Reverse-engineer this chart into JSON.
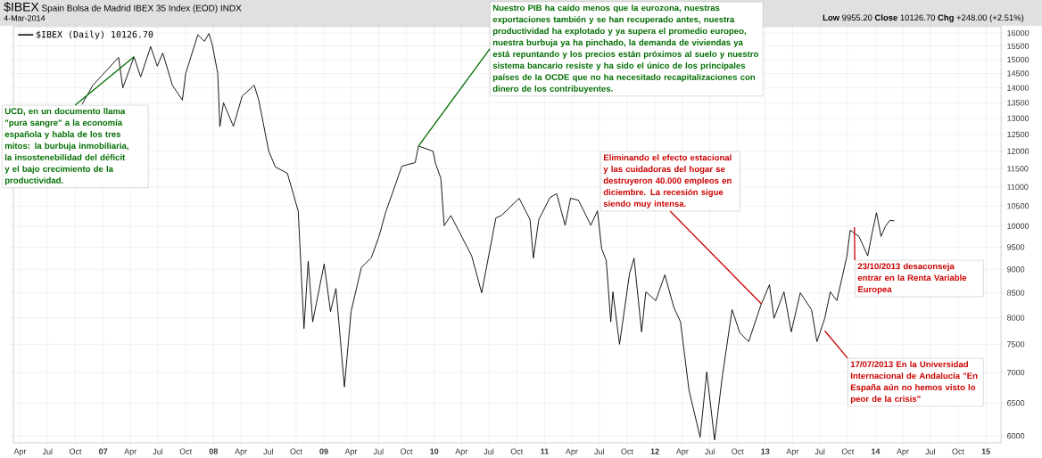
{
  "chart_data": {
    "type": "line",
    "title": "$IBEX",
    "subtitle": "Spain Bolsa de Madrid IBEX 35 Index (EOD) INDX",
    "x": [
      "2006-10-23",
      "2006-11-28",
      "2007-02-21",
      "2007-03-07",
      "2007-04-13",
      "2007-05-05",
      "2007-06-07",
      "2007-06-29",
      "2007-07-17",
      "2007-08-18",
      "2007-09-20",
      "2007-10-01",
      "2007-11-10",
      "2007-12-02",
      "2007-12-17",
      "2007-12-28",
      "2008-01-15",
      "2008-01-22",
      "2008-02-03",
      "2008-03-07",
      "2008-04-05",
      "2008-05-15",
      "2008-05-30",
      "2008-07-02",
      "2008-07-24",
      "2008-09-02",
      "2008-10-08",
      "2008-10-27",
      "2008-11-10",
      "2008-11-25",
      "2009-01-02",
      "2009-01-23",
      "2009-02-10",
      "2009-03-10",
      "2009-04-01",
      "2009-05-05",
      "2009-06-07",
      "2009-07-02",
      "2009-07-24",
      "2009-09-16",
      "2009-10-30",
      "2009-11-10",
      "2009-12-28",
      "2010-01-05",
      "2010-01-23",
      "2010-02-03",
      "2010-02-25",
      "2010-05-05",
      "2010-06-07",
      "2010-07-24",
      "2010-08-11",
      "2010-10-09",
      "2010-11-14",
      "2010-11-25",
      "2010-12-13",
      "2011-01-19",
      "2011-02-10",
      "2011-03-10",
      "2011-03-28",
      "2011-04-23",
      "2011-06-03",
      "2011-06-25",
      "2011-07-09",
      "2011-07-24",
      "2011-08-08",
      "2011-08-15",
      "2011-09-06",
      "2011-10-09",
      "2011-10-24",
      "2011-11-18",
      "2011-12-02",
      "2012-01-04",
      "2012-02-03",
      "2012-03-04",
      "2012-03-26",
      "2012-04-23",
      "2012-05-30",
      "2012-06-21",
      "2012-07-17",
      "2012-08-11",
      "2012-09-13",
      "2012-10-09",
      "2012-11-07",
      "2012-12-17",
      "2013-01-15",
      "2013-01-30",
      "2013-03-04",
      "2013-03-28",
      "2013-04-27",
      "2013-06-03",
      "2013-06-21",
      "2013-07-17",
      "2013-08-04",
      "2013-08-26",
      "2013-09-28",
      "2013-10-09",
      "2013-11-07",
      "2013-12-06",
      "2013-12-21",
      "2014-01-04",
      "2014-01-19",
      "2014-02-03",
      "2014-02-17",
      "2014-03-04"
    ],
    "series": [
      {
        "name": "$IBEX (Daily) 10126.70",
        "color": "#000000",
        "values": [
          13450,
          14090,
          15080,
          14000,
          15100,
          14380,
          15480,
          14760,
          15240,
          14090,
          13590,
          14500,
          15930,
          15680,
          15980,
          15550,
          14500,
          12740,
          13500,
          12750,
          13720,
          14090,
          13590,
          12010,
          11550,
          11370,
          10370,
          7790,
          9180,
          7920,
          9120,
          8120,
          8590,
          6760,
          8120,
          9040,
          9260,
          9740,
          10330,
          11570,
          11670,
          12150,
          12000,
          11660,
          11230,
          10010,
          10260,
          9300,
          8500,
          10200,
          10260,
          10700,
          10160,
          9250,
          10160,
          10720,
          10820,
          10020,
          10700,
          10650,
          10020,
          10380,
          9460,
          9200,
          7920,
          8520,
          7500,
          8900,
          9250,
          7730,
          8520,
          8340,
          8880,
          8200,
          7920,
          6710,
          5980,
          7010,
          5940,
          6910,
          8160,
          7710,
          7550,
          8240,
          8670,
          7990,
          8520,
          7730,
          8500,
          8160,
          7550,
          7990,
          8520,
          8340,
          9290,
          9900,
          9750,
          9300,
          9850,
          10330,
          9750,
          10000,
          10140,
          10126.7
        ]
      }
    ],
    "xlim": [
      "2006-03-10",
      "2015-02-20"
    ],
    "xticks": [
      {
        "value": "2006-04-01",
        "label": "Apr"
      },
      {
        "value": "2006-07-01",
        "label": "Jul"
      },
      {
        "value": "2006-10-01",
        "label": "Oct"
      },
      {
        "value": "2007-01-01",
        "label": "07"
      },
      {
        "value": "2007-04-01",
        "label": "Apr"
      },
      {
        "value": "2007-07-01",
        "label": "Jul"
      },
      {
        "value": "2007-10-01",
        "label": "Oct"
      },
      {
        "value": "2008-01-01",
        "label": "08"
      },
      {
        "value": "2008-04-01",
        "label": "Apr"
      },
      {
        "value": "2008-07-01",
        "label": "Jul"
      },
      {
        "value": "2008-10-01",
        "label": "Oct"
      },
      {
        "value": "2009-01-01",
        "label": "09"
      },
      {
        "value": "2009-04-01",
        "label": "Apr"
      },
      {
        "value": "2009-07-01",
        "label": "Jul"
      },
      {
        "value": "2009-10-01",
        "label": "Oct"
      },
      {
        "value": "2010-01-01",
        "label": "10"
      },
      {
        "value": "2010-04-01",
        "label": "Apr"
      },
      {
        "value": "2010-07-01",
        "label": "Jul"
      },
      {
        "value": "2010-10-01",
        "label": "Oct"
      },
      {
        "value": "2011-01-01",
        "label": "11"
      },
      {
        "value": "2011-04-01",
        "label": "Apr"
      },
      {
        "value": "2011-07-01",
        "label": "Jul"
      },
      {
        "value": "2011-10-01",
        "label": "Oct"
      },
      {
        "value": "2012-01-01",
        "label": "12"
      },
      {
        "value": "2012-04-01",
        "label": "Apr"
      },
      {
        "value": "2012-07-01",
        "label": "Jul"
      },
      {
        "value": "2012-10-01",
        "label": "Oct"
      },
      {
        "value": "2013-01-01",
        "label": "13"
      },
      {
        "value": "2013-04-01",
        "label": "Apr"
      },
      {
        "value": "2013-07-01",
        "label": "Jul"
      },
      {
        "value": "2013-10-01",
        "label": "Oct"
      },
      {
        "value": "2014-01-01",
        "label": "14"
      },
      {
        "value": "2014-04-01",
        "label": "Apr"
      },
      {
        "value": "2014-07-01",
        "label": "Jul"
      },
      {
        "value": "2014-10-01",
        "label": "Oct"
      },
      {
        "value": "2015-01-01",
        "label": "15"
      }
    ],
    "ylim": [
      5900,
      16250
    ],
    "yticks": [
      6000,
      6500,
      7000,
      7500,
      8000,
      8500,
      9000,
      9500,
      10000,
      10500,
      11000,
      11500,
      12000,
      12500,
      13000,
      13500,
      14000,
      14500,
      15000,
      15500,
      16000
    ],
    "log": true,
    "grid": true,
    "legend": "top left",
    "annotations": [
      "4-Mar-2014",
      "**Low** 9955.20 **Close** 10126.70 **Chg** +248.00 (+2.51%)",
      {
        "text": "UCD, en un documento llama \"pura sangre\" a la economía española y habla de los tres mitos: la burbuja inmobiliaria, la insostenebilidad del déficit y el bajo crecimiento de la productividad.",
        "x": "2007-04-13",
        "y": 15100
      },
      {
        "text": "Nuestro PIB ha caído menos que la eurozona, nuestras exportaciones también y se han recuperado antes, nuestra productividad ha explotado y ya supera el promedio europeo, nuestra burbuja ya ha pinchado, la demanda de viviendas ya está repuntando y los precios están próximos al suelo y nuestro sistema bancario resiste y ha sido el único de los principales países de la OCDE que no ha necesitado recapitalizaciones con dinero de los contribuyentes.",
        "x": "2009-11-10",
        "y": 12150
      },
      {
        "text": "Eliminando el efecto estacional y las cuidadoras del hogar se destruyeron 40.000 empleos en diciembre. La recesión sigue siendo muy intensa.",
        "x": "2012-12-20",
        "y": 8270
      },
      {
        "text": "23/10/2013 desaconseja entrar en la Renta Variable Europea",
        "x": "2013-10-23",
        "y": 9970
      },
      {
        "text": "17/07/2013 En la Universidad Internacional de Andalucía \"En España aún no hemos visto lo peor de la crisis\"",
        "x": "2013-07-17",
        "y": 7750
      }
    ]
  }
}
